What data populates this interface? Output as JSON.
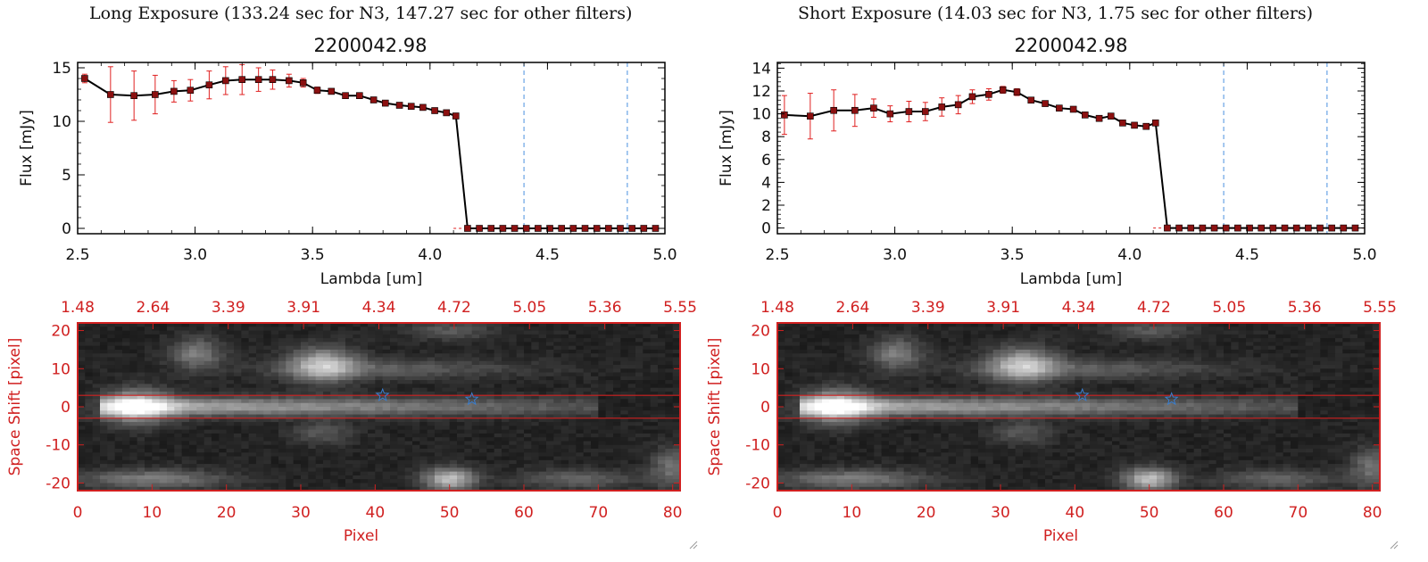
{
  "panels": [
    {
      "exposure_title": "Long Exposure (133.24 sec for N3, 147.27 sec for other filters)",
      "spectrum_title": "2200042.98"
    },
    {
      "exposure_title": "Short Exposure (14.03 sec for N3, 1.75 sec for other filters)",
      "spectrum_title": "2200042.98"
    }
  ],
  "colors": {
    "spectrum_line": "#000000",
    "error_bars": "#e02020",
    "markers": "#8b1010",
    "dashed_lines": "#4a90e0",
    "image_frame": "#d02020",
    "star_markers": "#3a7fd0"
  },
  "chart_data": [
    {
      "type": "line",
      "panel": "long",
      "title": "2200042.98",
      "xlabel": "Lambda [um]",
      "ylabel": "Flux [mJy]",
      "xlim": [
        2.5,
        5.0
      ],
      "ylim": [
        -0.5,
        15.5
      ],
      "x_ticks": [
        "2.5",
        "3.0",
        "3.5",
        "4.0",
        "4.5",
        "5.0"
      ],
      "y_ticks": [
        "0",
        "5",
        "10",
        "15"
      ],
      "y_tick_values": [
        0,
        5,
        10,
        15
      ],
      "x": [
        2.53,
        2.64,
        2.74,
        2.83,
        2.91,
        2.98,
        3.06,
        3.13,
        3.2,
        3.27,
        3.33,
        3.4,
        3.46,
        3.52,
        3.58,
        3.64,
        3.7,
        3.76,
        3.81,
        3.87,
        3.92,
        3.97,
        4.02,
        4.07,
        4.11,
        4.16,
        4.21,
        4.26,
        4.31,
        4.36,
        4.41,
        4.46,
        4.51,
        4.56,
        4.61,
        4.66,
        4.71,
        4.76,
        4.81,
        4.86,
        4.91,
        4.96
      ],
      "y": [
        14.0,
        12.5,
        12.4,
        12.5,
        12.8,
        12.9,
        13.4,
        13.8,
        13.9,
        13.9,
        13.9,
        13.8,
        13.6,
        12.9,
        12.8,
        12.4,
        12.4,
        12.0,
        11.7,
        11.5,
        11.4,
        11.3,
        11.0,
        10.8,
        10.5,
        0,
        0,
        0,
        0,
        0,
        0,
        0,
        0,
        0,
        0,
        0,
        0,
        0,
        0,
        0,
        0,
        0
      ],
      "error": [
        0.4,
        2.6,
        2.3,
        1.8,
        1.0,
        1.0,
        1.3,
        1.3,
        1.4,
        1.1,
        0.9,
        0.6,
        0.4,
        0.3,
        0.2,
        0.2,
        0.2,
        0.2,
        0.2,
        0.2,
        0.2,
        0.2,
        0.2,
        0.2,
        0.2,
        0,
        0,
        0,
        0,
        0,
        0,
        0,
        0,
        0,
        0,
        0,
        0,
        0,
        0,
        0,
        0,
        0
      ],
      "vlines": [
        4.4,
        4.84
      ]
    },
    {
      "type": "line",
      "panel": "short",
      "title": "2200042.98",
      "xlabel": "Lambda [um]",
      "ylabel": "Flux [mJy]",
      "xlim": [
        2.5,
        5.0
      ],
      "ylim": [
        -0.5,
        14.5
      ],
      "x_ticks": [
        "2.5",
        "3.0",
        "3.5",
        "4.0",
        "4.5",
        "5.0"
      ],
      "y_ticks": [
        "0",
        "2",
        "4",
        "6",
        "8",
        "10",
        "12",
        "14"
      ],
      "y_tick_values": [
        0,
        2,
        4,
        6,
        8,
        10,
        12,
        14
      ],
      "x": [
        2.53,
        2.64,
        2.74,
        2.83,
        2.91,
        2.98,
        3.06,
        3.13,
        3.2,
        3.27,
        3.33,
        3.4,
        3.46,
        3.52,
        3.58,
        3.64,
        3.7,
        3.76,
        3.81,
        3.87,
        3.92,
        3.97,
        4.02,
        4.07,
        4.11,
        4.16,
        4.21,
        4.26,
        4.31,
        4.36,
        4.41,
        4.46,
        4.51,
        4.56,
        4.61,
        4.66,
        4.71,
        4.76,
        4.81,
        4.86,
        4.91,
        4.96
      ],
      "y": [
        9.9,
        9.8,
        10.3,
        10.3,
        10.5,
        10.0,
        10.2,
        10.2,
        10.6,
        10.8,
        11.5,
        11.7,
        12.1,
        11.9,
        11.2,
        10.9,
        10.5,
        10.4,
        9.9,
        9.6,
        9.8,
        9.2,
        9.0,
        8.9,
        9.2,
        0,
        0,
        0,
        0,
        0,
        0,
        0,
        0,
        0,
        0,
        0,
        0,
        0,
        0,
        0,
        0,
        0
      ],
      "error": [
        1.7,
        2.0,
        1.8,
        1.4,
        0.8,
        0.7,
        0.9,
        0.8,
        0.8,
        0.8,
        0.6,
        0.5,
        0.3,
        0.3,
        0.2,
        0.2,
        0.2,
        0.2,
        0.2,
        0.2,
        0.2,
        0.2,
        0.2,
        0.2,
        0.2,
        0,
        0,
        0,
        0,
        0,
        0,
        0,
        0,
        0,
        0,
        0,
        0,
        0,
        0,
        0,
        0,
        0
      ],
      "vlines": [
        4.4,
        4.84
      ]
    },
    {
      "type": "heatmap",
      "panel": "long",
      "xlabel": "Pixel",
      "ylabel": "Space Shift [pixel]",
      "xlim": [
        0,
        81
      ],
      "ylim": [
        -22,
        22
      ],
      "x_ticks": [
        "0",
        "10",
        "20",
        "30",
        "40",
        "50",
        "60",
        "70",
        "80"
      ],
      "x_tick_values": [
        0,
        10,
        20,
        30,
        40,
        50,
        60,
        70,
        80
      ],
      "y_ticks": [
        "-20",
        "-10",
        "0",
        "10",
        "20"
      ],
      "y_tick_values": [
        -20,
        -10,
        0,
        10,
        20
      ],
      "top_axis_ticks": [
        "1.48",
        "2.64",
        "3.39",
        "3.91",
        "4.34",
        "4.72",
        "5.05",
        "5.36",
        "5.55"
      ],
      "hlines": [
        3,
        -3
      ],
      "star_markers": [
        {
          "x": 41,
          "y": 3
        },
        {
          "x": 53,
          "y": 2
        }
      ]
    },
    {
      "type": "heatmap",
      "panel": "short",
      "xlabel": "Pixel",
      "ylabel": "Space Shift [pixel]",
      "xlim": [
        0,
        81
      ],
      "ylim": [
        -22,
        22
      ],
      "x_ticks": [
        "0",
        "10",
        "20",
        "30",
        "40",
        "50",
        "60",
        "70",
        "80"
      ],
      "x_tick_values": [
        0,
        10,
        20,
        30,
        40,
        50,
        60,
        70,
        80
      ],
      "y_ticks": [
        "-20",
        "-10",
        "0",
        "10",
        "20"
      ],
      "y_tick_values": [
        -20,
        -10,
        0,
        10,
        20
      ],
      "top_axis_ticks": [
        "1.48",
        "2.64",
        "3.39",
        "3.91",
        "4.34",
        "4.72",
        "5.05",
        "5.36",
        "5.55"
      ],
      "hlines": [
        3,
        -3
      ],
      "star_markers": [
        {
          "x": 41,
          "y": 3
        },
        {
          "x": 53,
          "y": 2
        }
      ]
    }
  ]
}
